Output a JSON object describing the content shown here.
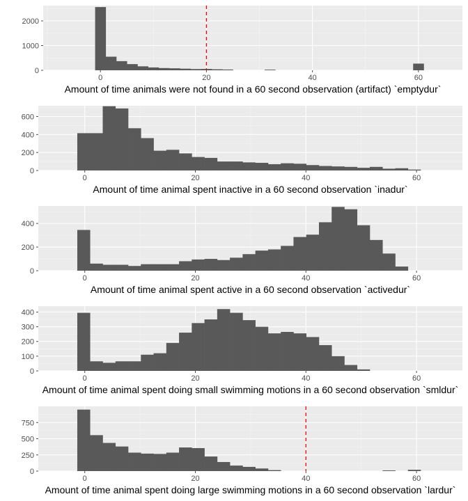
{
  "colors": {
    "panel": "#ebebeb",
    "grid_major": "#ffffff",
    "grid_minor": "#f5f5f5",
    "bar": "#595959",
    "tick": "#4d4d4d",
    "vline": "#ff0000"
  },
  "chart_data": [
    {
      "type": "bar",
      "xlabel": "Amount of time animals were not found in a 60 second observation (artifact) `emptydur`",
      "x_ticks": [
        0,
        20,
        40,
        60
      ],
      "x_tick_labels": [
        "0",
        "20",
        "40",
        "60"
      ],
      "y_ticks": [
        0,
        1000,
        2000
      ],
      "y_tick_labels": [
        "0",
        "1000",
        "2000"
      ],
      "xlim": [
        -10.8,
        68.3
      ],
      "ylim": [
        0,
        2620
      ],
      "bin_width": 2.0,
      "bins_x": [
        0,
        2,
        4,
        6,
        8,
        10,
        12,
        14,
        16,
        18,
        20,
        22,
        24,
        26,
        28,
        30,
        32,
        34,
        36,
        38,
        40,
        42,
        44,
        46,
        48,
        50,
        52,
        54,
        56,
        58,
        60
      ],
      "counts": [
        2560,
        550,
        370,
        250,
        160,
        115,
        90,
        80,
        65,
        50,
        55,
        40,
        30,
        0,
        0,
        0,
        25,
        0,
        0,
        0,
        0,
        0,
        0,
        0,
        0,
        0,
        0,
        0,
        0,
        0,
        270
      ],
      "vline": 20
    },
    {
      "type": "bar",
      "xlabel": "Amount of time animal spent inactive in a 60 second observation `inadur`",
      "x_ticks": [
        0,
        20,
        40,
        60
      ],
      "x_tick_labels": [
        "0",
        "20",
        "40",
        "60"
      ],
      "y_ticks": [
        0,
        200,
        400,
        600
      ],
      "y_tick_labels": [
        "0",
        "200",
        "400",
        "600"
      ],
      "xlim": [
        -8.4,
        68.3
      ],
      "ylim": [
        0,
        720
      ],
      "bin_width": 2.3,
      "bins_x": [
        -0.2,
        2.1,
        4.4,
        6.7,
        9.0,
        11.3,
        13.6,
        15.9,
        18.2,
        20.5,
        22.8,
        25.1,
        27.4,
        29.7,
        32.0,
        34.3,
        36.6,
        38.9,
        41.2,
        43.5,
        45.8,
        48.1,
        50.4,
        52.7,
        55.0,
        57.3,
        59.6,
        61.9
      ],
      "counts": [
        415,
        415,
        715,
        690,
        470,
        360,
        220,
        230,
        190,
        150,
        140,
        100,
        100,
        90,
        85,
        70,
        80,
        75,
        60,
        50,
        45,
        40,
        30,
        40,
        20,
        25,
        10,
        0
      ]
    },
    {
      "type": "bar",
      "xlabel": "Amount of time animal spent active in a 60 second observation `activedur`",
      "x_ticks": [
        0,
        20,
        40,
        60
      ],
      "x_tick_labels": [
        "0",
        "20",
        "40",
        "60"
      ],
      "y_ticks": [
        0,
        200,
        400
      ],
      "y_tick_labels": [
        "0",
        "200",
        "400"
      ],
      "xlim": [
        -8.4,
        68.3
      ],
      "ylim": [
        0,
        548
      ],
      "bin_width": 2.3,
      "bins_x": [
        -0.2,
        2.1,
        4.4,
        6.7,
        9.0,
        11.3,
        13.6,
        15.9,
        18.2,
        20.5,
        22.8,
        25.1,
        27.4,
        29.7,
        32.0,
        34.3,
        36.6,
        38.9,
        41.2,
        43.5,
        45.8,
        48.1,
        50.4,
        52.7,
        55.0,
        57.3,
        59.6,
        61.9
      ],
      "counts": [
        345,
        60,
        50,
        50,
        40,
        55,
        55,
        55,
        80,
        95,
        100,
        90,
        110,
        140,
        170,
        180,
        210,
        285,
        305,
        410,
        540,
        520,
        385,
        260,
        145,
        35,
        0,
        0
      ]
    },
    {
      "type": "bar",
      "xlabel": "Amount of time animal spent doing small swimming motions in a 60 second observation `smldur`",
      "x_ticks": [
        0,
        20,
        40,
        60
      ],
      "x_tick_labels": [
        "0",
        "20",
        "40",
        "60"
      ],
      "y_ticks": [
        0,
        100,
        200,
        300,
        400
      ],
      "y_tick_labels": [
        "0",
        "100",
        "200",
        "300",
        "400"
      ],
      "xlim": [
        -8.4,
        68.3
      ],
      "ylim": [
        0,
        440
      ],
      "bin_width": 2.3,
      "bins_x": [
        -0.2,
        2.1,
        4.4,
        6.7,
        9.0,
        11.3,
        13.6,
        15.9,
        18.2,
        20.5,
        22.8,
        25.1,
        27.4,
        29.7,
        32.0,
        34.3,
        36.6,
        38.9,
        41.2,
        43.5,
        45.8,
        48.1,
        50.4,
        52.7,
        55.0,
        57.3,
        59.6,
        61.9
      ],
      "counts": [
        395,
        65,
        55,
        65,
        65,
        110,
        120,
        190,
        260,
        325,
        350,
        420,
        395,
        345,
        300,
        255,
        265,
        255,
        230,
        175,
        100,
        40,
        10,
        0,
        0,
        0,
        0,
        0
      ]
    },
    {
      "type": "bar",
      "xlabel": "Amount of time animal spent doing large swimming motions in a 60 second observation `lardur`",
      "x_ticks": [
        0,
        20,
        40,
        60
      ],
      "x_tick_labels": [
        "0",
        "20",
        "40",
        "60"
      ],
      "y_ticks": [
        0,
        250,
        500,
        750
      ],
      "y_tick_labels": [
        "0",
        "250",
        "500",
        "750"
      ],
      "xlim": [
        -8.4,
        68.3
      ],
      "ylim": [
        0,
        1000
      ],
      "bin_width": 2.3,
      "bins_x": [
        -0.2,
        2.1,
        4.4,
        6.7,
        9.0,
        11.3,
        13.6,
        15.9,
        18.2,
        20.5,
        22.8,
        25.1,
        27.4,
        29.7,
        32.0,
        34.3,
        36.6,
        38.9,
        41.2,
        43.5,
        45.8,
        48.1,
        50.4,
        52.7,
        55.0,
        57.3,
        59.6,
        61.9
      ],
      "counts": [
        950,
        555,
        435,
        380,
        285,
        270,
        265,
        285,
        365,
        355,
        225,
        140,
        85,
        65,
        40,
        15,
        0,
        0,
        0,
        0,
        0,
        0,
        0,
        0,
        10,
        0,
        20,
        0
      ],
      "vline": 40
    }
  ]
}
